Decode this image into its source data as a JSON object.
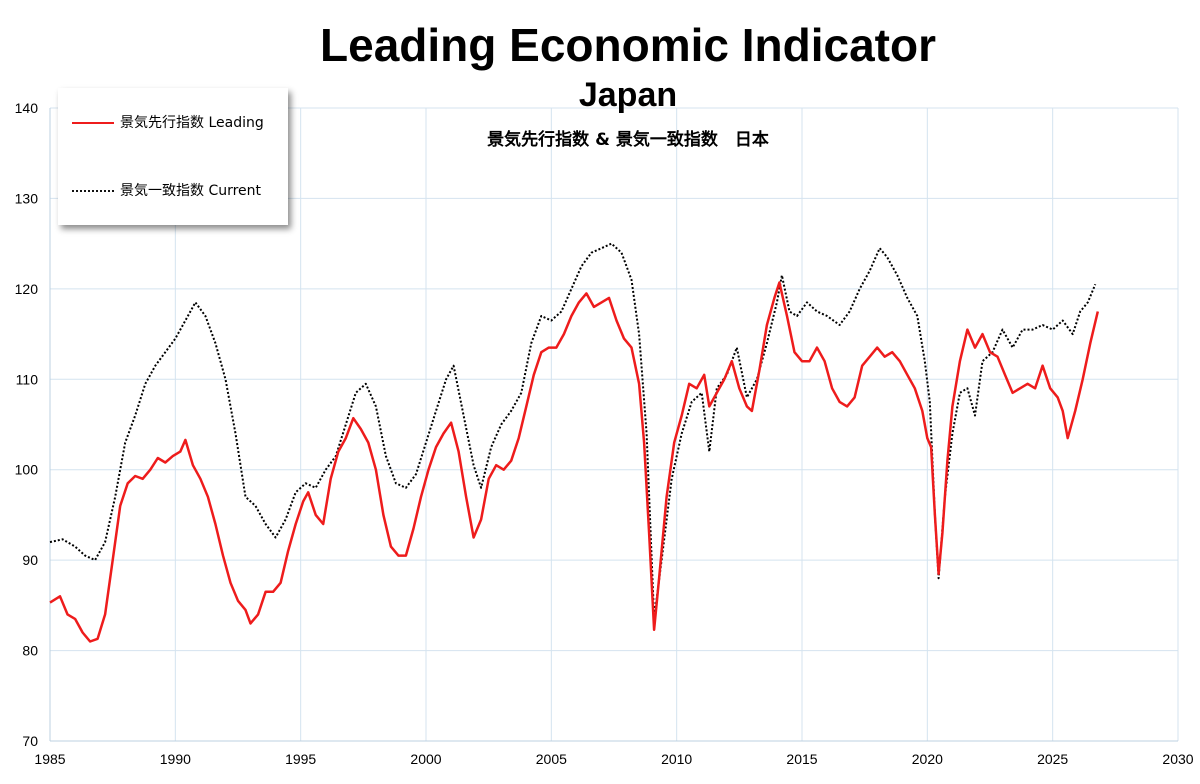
{
  "chart_data": {
    "type": "line",
    "title": "Leading Economic Indicator",
    "subtitle": "Japan",
    "subtitle2": "景気先行指数 & 景気一致指数　日本",
    "xlabel": "",
    "ylabel": "",
    "xlim": [
      1985,
      2030
    ],
    "ylim": [
      70,
      140
    ],
    "x_ticks": [
      1985,
      1990,
      1995,
      2000,
      2005,
      2010,
      2015,
      2020,
      2025,
      2030
    ],
    "y_ticks": [
      70,
      80,
      90,
      100,
      110,
      120,
      130,
      140
    ],
    "grid": true,
    "legend_position": "top-left",
    "series": [
      {
        "name": "景気先行指数 Leading",
        "color": "#ee1c1c",
        "style": "solid",
        "points": [
          [
            1985.0,
            85.3
          ],
          [
            1985.4,
            86.0
          ],
          [
            1985.7,
            84.0
          ],
          [
            1986.0,
            83.5
          ],
          [
            1986.3,
            82.0
          ],
          [
            1986.6,
            81.0
          ],
          [
            1986.9,
            81.3
          ],
          [
            1987.2,
            84.0
          ],
          [
            1987.5,
            90.0
          ],
          [
            1987.8,
            96.0
          ],
          [
            1988.1,
            98.5
          ],
          [
            1988.4,
            99.3
          ],
          [
            1988.7,
            99.0
          ],
          [
            1989.0,
            100.0
          ],
          [
            1989.3,
            101.3
          ],
          [
            1989.6,
            100.8
          ],
          [
            1989.9,
            101.5
          ],
          [
            1990.2,
            102.0
          ],
          [
            1990.4,
            103.3
          ],
          [
            1990.7,
            100.5
          ],
          [
            1991.0,
            99.0
          ],
          [
            1991.3,
            97.0
          ],
          [
            1991.6,
            94.0
          ],
          [
            1991.9,
            90.5
          ],
          [
            1992.2,
            87.5
          ],
          [
            1992.5,
            85.5
          ],
          [
            1992.8,
            84.5
          ],
          [
            1993.0,
            83.0
          ],
          [
            1993.3,
            84.0
          ],
          [
            1993.6,
            86.5
          ],
          [
            1993.9,
            86.5
          ],
          [
            1994.2,
            87.5
          ],
          [
            1994.5,
            91.0
          ],
          [
            1994.8,
            94.0
          ],
          [
            1995.1,
            96.5
          ],
          [
            1995.3,
            97.5
          ],
          [
            1995.6,
            95.0
          ],
          [
            1995.9,
            94.0
          ],
          [
            1996.2,
            99.0
          ],
          [
            1996.5,
            102.0
          ],
          [
            1996.8,
            103.5
          ],
          [
            1997.1,
            105.7
          ],
          [
            1997.4,
            104.5
          ],
          [
            1997.7,
            103.0
          ],
          [
            1998.0,
            100.0
          ],
          [
            1998.3,
            95.0
          ],
          [
            1998.6,
            91.5
          ],
          [
            1998.9,
            90.5
          ],
          [
            1999.2,
            90.5
          ],
          [
            1999.5,
            93.5
          ],
          [
            1999.8,
            97.0
          ],
          [
            2000.1,
            100.0
          ],
          [
            2000.4,
            102.5
          ],
          [
            2000.7,
            104.0
          ],
          [
            2001.0,
            105.2
          ],
          [
            2001.3,
            102.0
          ],
          [
            2001.6,
            97.0
          ],
          [
            2001.9,
            92.5
          ],
          [
            2002.2,
            94.5
          ],
          [
            2002.5,
            99.0
          ],
          [
            2002.8,
            100.5
          ],
          [
            2003.1,
            100.0
          ],
          [
            2003.4,
            101.0
          ],
          [
            2003.7,
            103.5
          ],
          [
            2004.0,
            107.0
          ],
          [
            2004.3,
            110.5
          ],
          [
            2004.6,
            113.0
          ],
          [
            2004.9,
            113.5
          ],
          [
            2005.2,
            113.5
          ],
          [
            2005.5,
            115.0
          ],
          [
            2005.8,
            117.0
          ],
          [
            2006.1,
            118.5
          ],
          [
            2006.4,
            119.5
          ],
          [
            2006.7,
            118.0
          ],
          [
            2007.0,
            118.5
          ],
          [
            2007.3,
            119.0
          ],
          [
            2007.6,
            116.5
          ],
          [
            2007.9,
            114.5
          ],
          [
            2008.2,
            113.5
          ],
          [
            2008.5,
            109.5
          ],
          [
            2008.7,
            103.0
          ],
          [
            2008.9,
            93.0
          ],
          [
            2009.1,
            82.3
          ],
          [
            2009.3,
            88.0
          ],
          [
            2009.6,
            97.0
          ],
          [
            2009.9,
            103.0
          ],
          [
            2010.2,
            106.0
          ],
          [
            2010.5,
            109.5
          ],
          [
            2010.8,
            109.0
          ],
          [
            2011.1,
            110.5
          ],
          [
            2011.3,
            107.0
          ],
          [
            2011.6,
            108.5
          ],
          [
            2011.9,
            110.0
          ],
          [
            2012.2,
            112.0
          ],
          [
            2012.5,
            109.0
          ],
          [
            2012.8,
            107.0
          ],
          [
            2013.0,
            106.5
          ],
          [
            2013.3,
            111.0
          ],
          [
            2013.6,
            116.0
          ],
          [
            2013.9,
            119.0
          ],
          [
            2014.1,
            120.7
          ],
          [
            2014.4,
            117.0
          ],
          [
            2014.7,
            113.0
          ],
          [
            2015.0,
            112.0
          ],
          [
            2015.3,
            112.0
          ],
          [
            2015.6,
            113.5
          ],
          [
            2015.9,
            112.0
          ],
          [
            2016.2,
            109.0
          ],
          [
            2016.5,
            107.5
          ],
          [
            2016.8,
            107.0
          ],
          [
            2017.1,
            108.0
          ],
          [
            2017.4,
            111.5
          ],
          [
            2017.7,
            112.5
          ],
          [
            2018.0,
            113.5
          ],
          [
            2018.3,
            112.5
          ],
          [
            2018.6,
            113.0
          ],
          [
            2018.9,
            112.0
          ],
          [
            2019.2,
            110.5
          ],
          [
            2019.5,
            109.0
          ],
          [
            2019.8,
            106.5
          ],
          [
            2020.0,
            103.5
          ],
          [
            2020.15,
            102.5
          ],
          [
            2020.3,
            95.0
          ],
          [
            2020.45,
            88.5
          ],
          [
            2020.6,
            93.0
          ],
          [
            2020.8,
            101.0
          ],
          [
            2021.0,
            107.0
          ],
          [
            2021.3,
            112.0
          ],
          [
            2021.6,
            115.5
          ],
          [
            2021.9,
            113.5
          ],
          [
            2022.2,
            115.0
          ],
          [
            2022.5,
            113.0
          ],
          [
            2022.8,
            112.5
          ],
          [
            2023.1,
            110.5
          ],
          [
            2023.4,
            108.5
          ],
          [
            2023.7,
            109.0
          ],
          [
            2024.0,
            109.5
          ],
          [
            2024.3,
            109.0
          ],
          [
            2024.6,
            111.5
          ],
          [
            2024.9,
            109.0
          ],
          [
            2025.2,
            108.0
          ],
          [
            2025.4,
            106.5
          ],
          [
            2025.6,
            103.5
          ],
          [
            2025.9,
            106.5
          ],
          [
            2026.2,
            110.0
          ],
          [
            2026.5,
            114.0
          ],
          [
            2026.8,
            117.5
          ]
        ]
      },
      {
        "name": "景気一致指数 Current",
        "color": "#000000",
        "style": "dotted",
        "points": [
          [
            1985.0,
            92.0
          ],
          [
            1985.5,
            92.3
          ],
          [
            1986.0,
            91.5
          ],
          [
            1986.4,
            90.5
          ],
          [
            1986.8,
            90.0
          ],
          [
            1987.2,
            92.0
          ],
          [
            1987.6,
            97.0
          ],
          [
            1988.0,
            103.0
          ],
          [
            1988.4,
            106.0
          ],
          [
            1988.8,
            109.5
          ],
          [
            1989.2,
            111.5
          ],
          [
            1989.6,
            113.0
          ],
          [
            1990.0,
            114.5
          ],
          [
            1990.4,
            116.5
          ],
          [
            1990.8,
            118.5
          ],
          [
            1991.2,
            117.0
          ],
          [
            1991.6,
            114.0
          ],
          [
            1992.0,
            110.0
          ],
          [
            1992.4,
            104.0
          ],
          [
            1992.8,
            97.0
          ],
          [
            1993.2,
            96.0
          ],
          [
            1993.6,
            94.0
          ],
          [
            1994.0,
            92.5
          ],
          [
            1994.4,
            94.5
          ],
          [
            1994.8,
            97.5
          ],
          [
            1995.2,
            98.5
          ],
          [
            1995.6,
            98.0
          ],
          [
            1996.0,
            100.0
          ],
          [
            1996.4,
            101.5
          ],
          [
            1996.8,
            105.0
          ],
          [
            1997.2,
            108.5
          ],
          [
            1997.6,
            109.5
          ],
          [
            1998.0,
            107.0
          ],
          [
            1998.4,
            101.5
          ],
          [
            1998.8,
            98.5
          ],
          [
            1999.2,
            98.0
          ],
          [
            1999.6,
            99.5
          ],
          [
            2000.0,
            103.0
          ],
          [
            2000.4,
            106.5
          ],
          [
            2000.8,
            110.0
          ],
          [
            2001.1,
            111.5
          ],
          [
            2001.5,
            106.0
          ],
          [
            2001.9,
            100.5
          ],
          [
            2002.2,
            98.0
          ],
          [
            2002.6,
            102.5
          ],
          [
            2003.0,
            105.0
          ],
          [
            2003.4,
            106.5
          ],
          [
            2003.8,
            108.5
          ],
          [
            2004.2,
            114.0
          ],
          [
            2004.6,
            117.0
          ],
          [
            2005.0,
            116.5
          ],
          [
            2005.4,
            117.5
          ],
          [
            2005.8,
            120.0
          ],
          [
            2006.2,
            122.5
          ],
          [
            2006.6,
            124.0
          ],
          [
            2007.0,
            124.5
          ],
          [
            2007.4,
            125.0
          ],
          [
            2007.8,
            124.0
          ],
          [
            2008.2,
            121.0
          ],
          [
            2008.5,
            115.0
          ],
          [
            2008.8,
            104.0
          ],
          [
            2009.1,
            83.5
          ],
          [
            2009.4,
            90.0
          ],
          [
            2009.8,
            99.0
          ],
          [
            2010.2,
            104.0
          ],
          [
            2010.6,
            107.5
          ],
          [
            2011.0,
            108.5
          ],
          [
            2011.3,
            102.0
          ],
          [
            2011.6,
            109.0
          ],
          [
            2012.0,
            110.5
          ],
          [
            2012.4,
            113.5
          ],
          [
            2012.8,
            108.0
          ],
          [
            2013.2,
            110.0
          ],
          [
            2013.6,
            114.0
          ],
          [
            2014.0,
            118.5
          ],
          [
            2014.2,
            121.5
          ],
          [
            2014.5,
            117.5
          ],
          [
            2014.8,
            117.0
          ],
          [
            2015.2,
            118.5
          ],
          [
            2015.6,
            117.5
          ],
          [
            2016.0,
            117.0
          ],
          [
            2016.5,
            116.0
          ],
          [
            2016.9,
            117.5
          ],
          [
            2017.3,
            120.0
          ],
          [
            2017.7,
            122.0
          ],
          [
            2018.1,
            124.5
          ],
          [
            2018.4,
            123.5
          ],
          [
            2018.8,
            121.5
          ],
          [
            2019.2,
            119.0
          ],
          [
            2019.6,
            117.0
          ],
          [
            2019.9,
            112.0
          ],
          [
            2020.1,
            107.5
          ],
          [
            2020.3,
            95.0
          ],
          [
            2020.45,
            88.0
          ],
          [
            2020.7,
            97.0
          ],
          [
            2021.0,
            104.0
          ],
          [
            2021.3,
            108.5
          ],
          [
            2021.6,
            109.0
          ],
          [
            2021.9,
            106.0
          ],
          [
            2022.2,
            112.0
          ],
          [
            2022.6,
            113.0
          ],
          [
            2023.0,
            115.5
          ],
          [
            2023.4,
            113.5
          ],
          [
            2023.8,
            115.5
          ],
          [
            2024.2,
            115.5
          ],
          [
            2024.6,
            116.0
          ],
          [
            2025.0,
            115.5
          ],
          [
            2025.4,
            116.5
          ],
          [
            2025.8,
            115.0
          ],
          [
            2026.1,
            117.5
          ],
          [
            2026.4,
            118.5
          ],
          [
            2026.7,
            120.5
          ]
        ]
      }
    ]
  }
}
